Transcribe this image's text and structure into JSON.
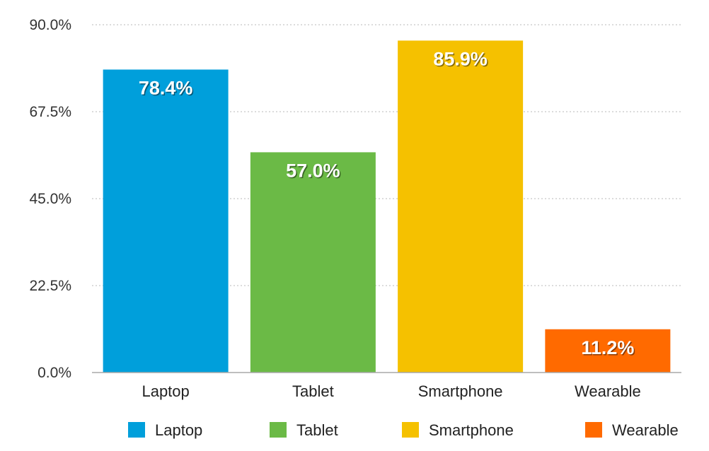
{
  "chart_data": {
    "type": "bar",
    "title": "",
    "xlabel": "",
    "ylabel": "",
    "categories": [
      "Laptop",
      "Tablet",
      "Smartphone",
      "Wearable"
    ],
    "values": [
      78.4,
      57.0,
      85.9,
      11.2
    ],
    "data_labels": [
      "78.4%",
      "57.0%",
      "85.9%",
      "11.2%"
    ],
    "colors": [
      "#009fdb",
      "#6bba46",
      "#f5c100",
      "#ff6a00"
    ],
    "ylim": [
      0,
      90
    ],
    "yticks": [
      0,
      22.5,
      45,
      67.5,
      90
    ],
    "ytick_labels": [
      "0.0%",
      "22.5%",
      "45.0%",
      "67.5%",
      "90.0%"
    ],
    "grid": true,
    "legend": {
      "position": "bottom",
      "entries": [
        "Laptop",
        "Tablet",
        "Smartphone",
        "Wearable"
      ]
    }
  }
}
